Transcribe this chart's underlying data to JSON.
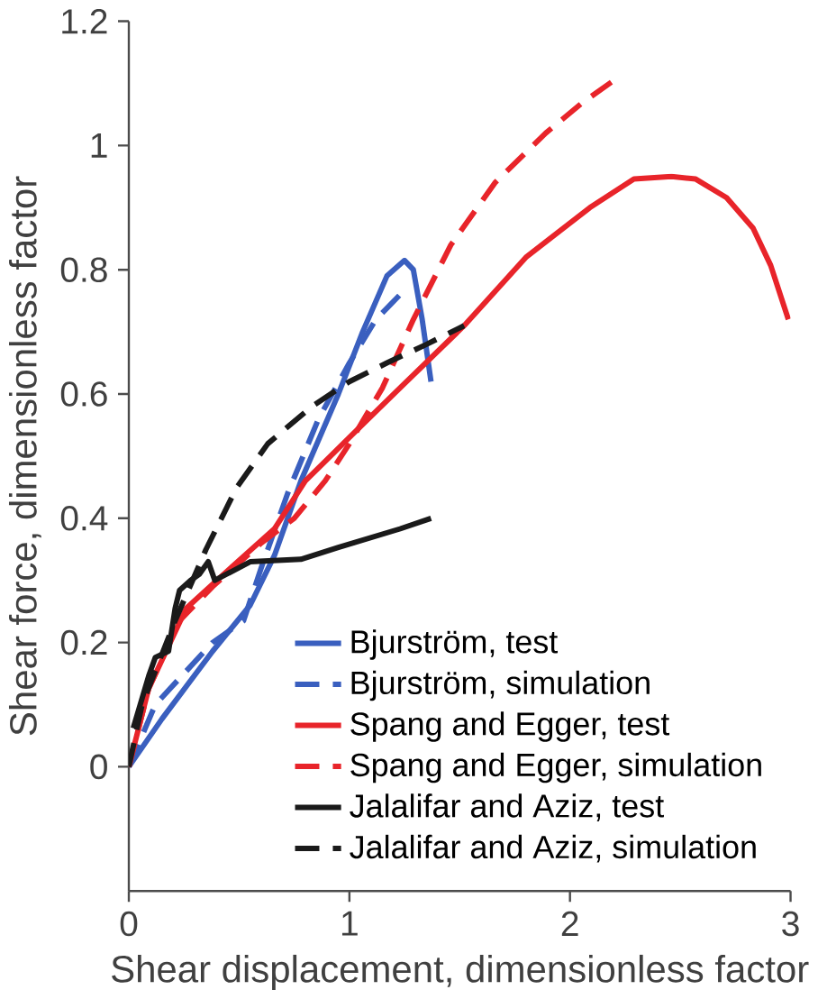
{
  "chart_data": {
    "type": "line",
    "xlabel": "Shear displacement, dimensionless factor",
    "ylabel": "Shear force, dimensionless factor",
    "xlim": [
      0,
      3
    ],
    "ylim": [
      -0.2,
      1.2
    ],
    "xticks": [
      0,
      1,
      2,
      3
    ],
    "yticks": [
      0,
      0.2,
      0.4,
      0.6,
      0.8,
      1,
      1.2
    ],
    "legend": "bottom right",
    "grid": false,
    "marker": "none",
    "series": [
      {
        "name": "Bjurström, test",
        "color": "#3a5fbf",
        "line_style": "solid",
        "x": [
          0,
          0.15,
          0.38,
          0.55,
          0.66,
          0.78,
          0.95,
          1.06,
          1.17,
          1.25,
          1.29,
          1.33,
          1.37
        ],
        "values": [
          0,
          0.077,
          0.186,
          0.26,
          0.34,
          0.46,
          0.6,
          0.7,
          0.79,
          0.815,
          0.8,
          0.72,
          0.62
        ]
      },
      {
        "name": "Bjurström, simulation",
        "color": "#3a5fbf",
        "line_style": "dashed",
        "x": [
          0,
          0.12,
          0.38,
          0.52,
          0.6,
          0.72,
          0.86,
          1.0,
          1.12,
          1.23
        ],
        "values": [
          0,
          0.1,
          0.2,
          0.235,
          0.32,
          0.44,
          0.56,
          0.65,
          0.72,
          0.76
        ]
      },
      {
        "name": "Spang and Egger, test",
        "color": "#e8242a",
        "line_style": "solid",
        "x": [
          0,
          0.09,
          0.26,
          0.38,
          0.66,
          0.8,
          1.0,
          1.23,
          1.52,
          1.8,
          2.09,
          2.29,
          2.46,
          2.57,
          2.71,
          2.83,
          2.91,
          2.99
        ],
        "values": [
          0,
          0.126,
          0.255,
          0.294,
          0.383,
          0.46,
          0.53,
          0.61,
          0.71,
          0.82,
          0.9,
          0.946,
          0.95,
          0.946,
          0.916,
          0.867,
          0.807,
          0.72
        ]
      },
      {
        "name": "Spang and Egger, simulation",
        "color": "#e8242a",
        "line_style": "dashed",
        "x": [
          0,
          0.09,
          0.23,
          0.38,
          0.6,
          0.75,
          0.89,
          1.0,
          1.15,
          1.29,
          1.46,
          1.66,
          1.89,
          2.06,
          2.22
        ],
        "values": [
          0,
          0.126,
          0.235,
          0.29,
          0.36,
          0.4,
          0.46,
          0.52,
          0.61,
          0.72,
          0.84,
          0.94,
          1.02,
          1.07,
          1.11
        ]
      },
      {
        "name": "Jalalifar and Aziz, test",
        "color": "#1a1a1a",
        "line_style": "solid",
        "x": [
          0.02,
          0.09,
          0.12,
          0.18,
          0.21,
          0.23,
          0.28,
          0.32,
          0.36,
          0.39,
          0.55,
          0.78,
          0.95,
          1.09,
          1.23,
          1.37
        ],
        "values": [
          0.062,
          0.146,
          0.176,
          0.186,
          0.255,
          0.284,
          0.3,
          0.31,
          0.33,
          0.3,
          0.33,
          0.334,
          0.353,
          0.368,
          0.383,
          0.4
        ]
      },
      {
        "name": "Jalalifar and Aziz, simulation",
        "color": "#1a1a1a",
        "line_style": "dashed",
        "x": [
          0,
          0.06,
          0.21,
          0.35,
          0.49,
          0.63,
          0.83,
          1.0,
          1.17,
          1.35,
          1.52
        ],
        "values": [
          0,
          0.1,
          0.235,
          0.35,
          0.45,
          0.52,
          0.58,
          0.62,
          0.65,
          0.68,
          0.71
        ]
      }
    ]
  }
}
